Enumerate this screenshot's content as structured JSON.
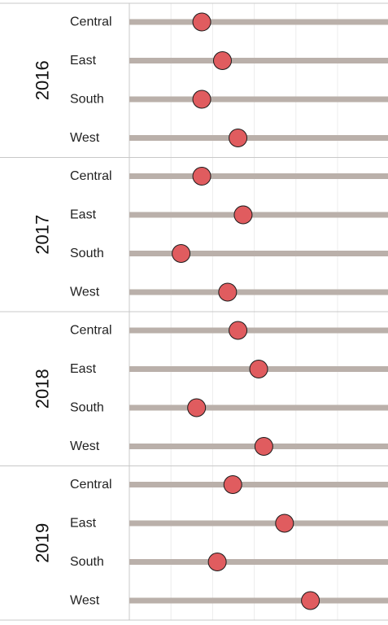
{
  "chart_data": {
    "type": "scatter",
    "title": "",
    "xlabel": "",
    "ylabel": "",
    "x_axis_labels_visible": false,
    "grid": "vertical",
    "colors": {
      "dot": "#e05c5f",
      "dot_stroke": "#1a1a1a",
      "track": "#bab0aa",
      "gridline": "#ececec",
      "divider": "#c8c8c8"
    },
    "groups": [
      {
        "year": "2016",
        "rows": [
          {
            "region": "Central",
            "value": 0.14
          },
          {
            "region": "East",
            "value": 0.18
          },
          {
            "region": "South",
            "value": 0.14
          },
          {
            "region": "West",
            "value": 0.21
          }
        ]
      },
      {
        "year": "2017",
        "rows": [
          {
            "region": "Central",
            "value": 0.14
          },
          {
            "region": "East",
            "value": 0.22
          },
          {
            "region": "South",
            "value": 0.1
          },
          {
            "region": "West",
            "value": 0.19
          }
        ]
      },
      {
        "year": "2018",
        "rows": [
          {
            "region": "Central",
            "value": 0.21
          },
          {
            "region": "East",
            "value": 0.25
          },
          {
            "region": "South",
            "value": 0.13
          },
          {
            "region": "West",
            "value": 0.26
          }
        ]
      },
      {
        "year": "2019",
        "rows": [
          {
            "region": "Central",
            "value": 0.2
          },
          {
            "region": "East",
            "value": 0.3
          },
          {
            "region": "South",
            "value": 0.17
          },
          {
            "region": "West",
            "value": 0.35
          }
        ]
      }
    ]
  }
}
